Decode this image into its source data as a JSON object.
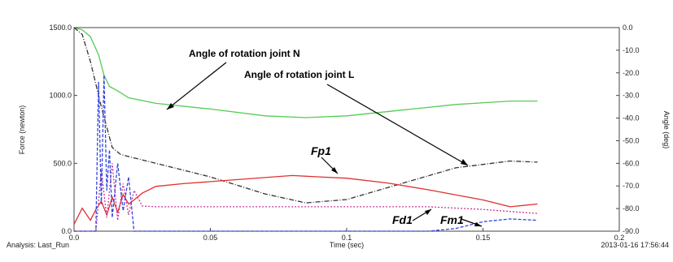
{
  "chart_data": {
    "type": "line",
    "xlabel": "Time (sec)",
    "ylabel_left": "Force (newton)",
    "ylabel_right": "Angle (deg)",
    "xlim": [
      0.0,
      0.2
    ],
    "ylim_left": [
      0.0,
      1500.0
    ],
    "ylim_right": [
      -90.0,
      0.0
    ],
    "x_ticks": [
      "0.0",
      "0.05",
      "0.1",
      "0.15",
      "0.2"
    ],
    "y_ticks_left": [
      "0.0",
      "500.0",
      "1000.0",
      "1500.0"
    ],
    "y_ticks_right": [
      "0.0",
      "-10.0",
      "-20.0",
      "-30.0",
      "-40.0",
      "-50.0",
      "-60.0",
      "-70.0",
      "-80.0",
      "-90.0"
    ],
    "grid": false,
    "footer_left": "Analysis:  Last_Run",
    "footer_right": "2013-01-16 17:56:44",
    "annotations": [
      {
        "text": "Angle of rotation  joint N",
        "series": "angle_N"
      },
      {
        "text": "Angle of rotation  joint L",
        "series": "angle_L"
      },
      {
        "text": "Fp1",
        "series": "Fp1"
      },
      {
        "text": "Fd1",
        "series": "Fd1"
      },
      {
        "text": "Fm1",
        "series": "Fm1"
      }
    ],
    "series": [
      {
        "key": "angle_N",
        "axis": "right",
        "color": "#55cc55",
        "dash": "",
        "x": [
          0,
          0.003,
          0.006,
          0.009,
          0.011,
          0.013,
          0.016,
          0.02,
          0.03,
          0.05,
          0.07,
          0.085,
          0.1,
          0.12,
          0.14,
          0.16,
          0.17
        ],
        "y": [
          0,
          -1,
          -4,
          -12,
          -21,
          -26,
          -28,
          -31,
          -33.5,
          -36,
          -39,
          -39.8,
          -39,
          -36.5,
          -34,
          -32.5,
          -32.5
        ]
      },
      {
        "key": "angle_L",
        "axis": "right",
        "color": "#333333",
        "dash": "6,2,1,2",
        "x": [
          0,
          0.003,
          0.006,
          0.01,
          0.014,
          0.017,
          0.02,
          0.03,
          0.05,
          0.07,
          0.085,
          0.1,
          0.12,
          0.14,
          0.16,
          0.17
        ],
        "y": [
          0,
          -3,
          -15,
          -35,
          -53,
          -56,
          -57,
          -60,
          -66,
          -73.5,
          -77.5,
          -76,
          -69,
          -62,
          -59,
          -59.5
        ]
      },
      {
        "key": "Fp1",
        "axis": "left",
        "color": "#e03030",
        "dash": "",
        "x": [
          0,
          0.003,
          0.006,
          0.008,
          0.01,
          0.012,
          0.014,
          0.016,
          0.018,
          0.02,
          0.022,
          0.025,
          0.03,
          0.04,
          0.06,
          0.08,
          0.09,
          0.1,
          0.115,
          0.13,
          0.15,
          0.16,
          0.17
        ],
        "y": [
          50,
          170,
          80,
          160,
          220,
          120,
          250,
          140,
          270,
          200,
          230,
          280,
          330,
          350,
          380,
          410,
          400,
          390,
          355,
          305,
          230,
          180,
          200
        ]
      },
      {
        "key": "Fd1",
        "axis": "left",
        "color": "#cc3399",
        "dash": "2,2",
        "x": [
          0,
          0.008,
          0.01,
          0.012,
          0.014,
          0.016,
          0.018,
          0.02,
          0.022,
          0.025,
          0.03,
          0.05,
          0.08,
          0.1,
          0.13,
          0.15,
          0.17
        ],
        "y": [
          0,
          0,
          450,
          100,
          500,
          80,
          350,
          120,
          300,
          185,
          180,
          180,
          180,
          180,
          180,
          160,
          130
        ]
      },
      {
        "key": "Fm1",
        "axis": "left",
        "color": "#3344dd",
        "dash": "4,2",
        "x": [
          0,
          0.008,
          0.009,
          0.01,
          0.011,
          0.012,
          0.013,
          0.014,
          0.016,
          0.018,
          0.02,
          0.022,
          0.03,
          0.1,
          0.13,
          0.14,
          0.15,
          0.16,
          0.17
        ],
        "y": [
          0,
          0,
          1100,
          200,
          1150,
          300,
          600,
          100,
          500,
          150,
          400,
          0,
          0,
          0,
          0,
          20,
          70,
          90,
          80
        ]
      }
    ]
  }
}
